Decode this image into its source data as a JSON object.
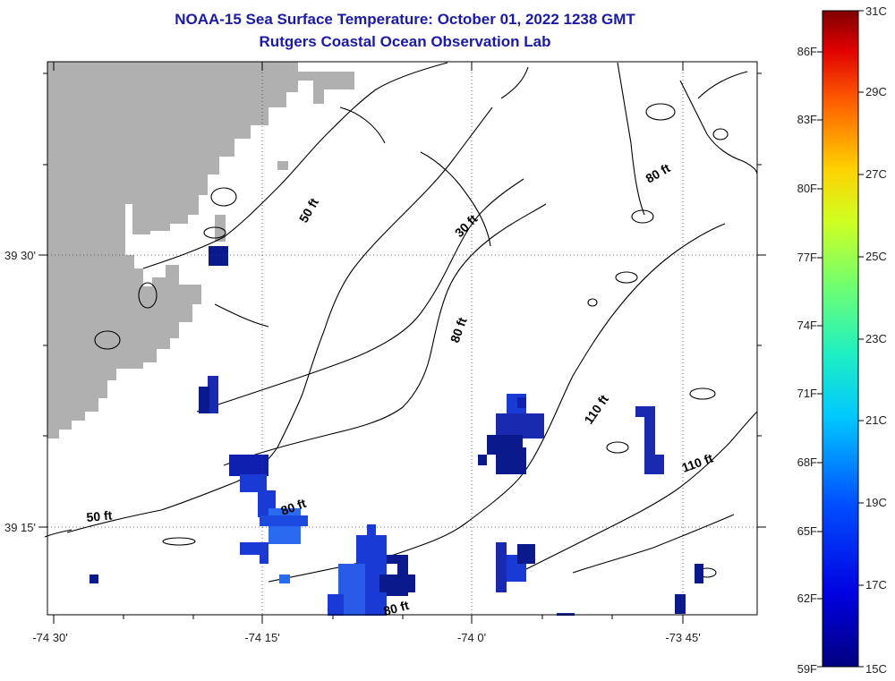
{
  "title": {
    "line1": "NOAA-15 Sea Surface Temperature:  October 01, 2022 1238 GMT",
    "line2": "Rutgers Coastal Ocean Observation Lab"
  },
  "axes": {
    "x_ticks": [
      "-74 30'",
      "-74 15'",
      "-74 0'",
      "-73 45'"
    ],
    "y_ticks": [
      "39 30'",
      "39 15'"
    ]
  },
  "contour_labels": {
    "a": "50 ft",
    "b": "30 ft",
    "c": "80 ft",
    "d": "80 ft",
    "e": "110 ft",
    "f": "110 ft",
    "g": "50 ft",
    "h": "80 ft",
    "i": "80 ft"
  },
  "colorbar": {
    "fahrenheit": [
      "86F",
      "83F",
      "80F",
      "77F",
      "74F",
      "71F",
      "68F",
      "65F",
      "62F",
      "59F"
    ],
    "celsius": [
      "31C",
      "29C",
      "27C",
      "25C",
      "23C",
      "21C",
      "19C",
      "17C",
      "15C"
    ]
  },
  "colors": {
    "land": "#b0b0b0",
    "title": "#1a1aa6",
    "cold_dark": "#0a1a8c",
    "cold_mid": "#1a3ad6",
    "cold_light": "#2a6af0"
  }
}
